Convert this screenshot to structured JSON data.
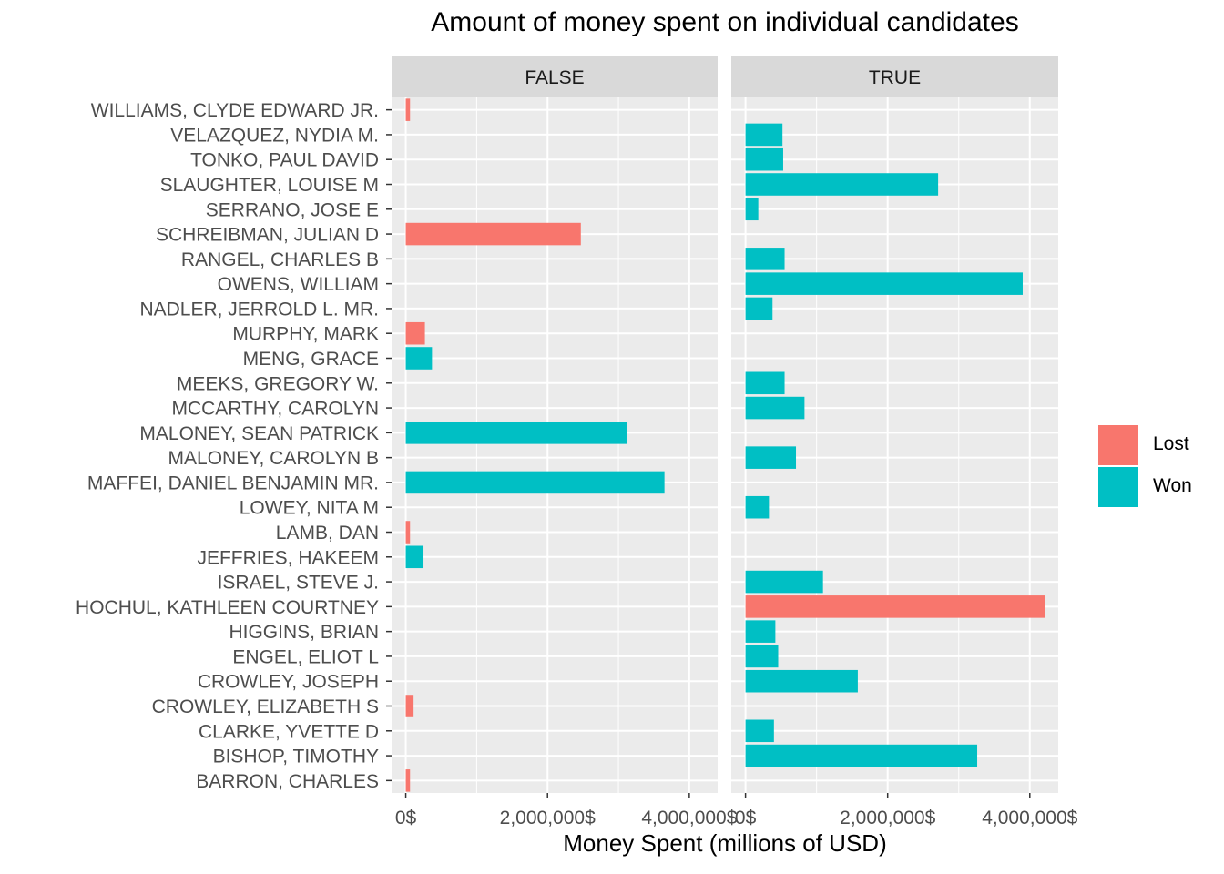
{
  "chart_data": {
    "type": "bar",
    "orientation": "horizontal",
    "title": "Amount of money spent on individual candidates",
    "xlabel": "Money Spent (millions of USD)",
    "ylabel": "",
    "xlim": [
      -200000,
      4400000
    ],
    "x_ticks": [
      0,
      2000000,
      4000000
    ],
    "x_tick_labels": [
      "0$",
      "2,000,000$",
      "4,000,000$"
    ],
    "facets": [
      "FALSE",
      "TRUE"
    ],
    "categories": [
      "WILLIAMS, CLYDE EDWARD JR.",
      "VELAZQUEZ, NYDIA M.",
      "TONKO, PAUL DAVID",
      "SLAUGHTER, LOUISE M",
      "SERRANO, JOSE E",
      "SCHREIBMAN, JULIAN D",
      "RANGEL, CHARLES B",
      "OWENS, WILLIAM",
      "NADLER, JERROLD L. MR.",
      "MURPHY, MARK",
      "MENG, GRACE",
      "MEEKS, GREGORY W.",
      "MCCARTHY, CAROLYN",
      "MALONEY, SEAN PATRICK",
      "MALONEY, CAROLYN B",
      "MAFFEI, DANIEL BENJAMIN MR.",
      "LOWEY, NITA M",
      "LAMB, DAN",
      "JEFFRIES, HAKEEM",
      "ISRAEL, STEVE J.",
      "HOCHUL, KATHLEEN COURTNEY",
      "HIGGINS, BRIAN",
      "ENGEL, ELIOT L",
      "CROWLEY, JOSEPH",
      "CROWLEY, ELIZABETH S",
      "CLARKE, YVETTE D",
      "BISHOP, TIMOTHY",
      "BARRON, CHARLES"
    ],
    "legend": {
      "position": "right",
      "entries": [
        {
          "name": "Lost",
          "color": "#F8766D"
        },
        {
          "name": "Won",
          "color": "#00BFC4"
        }
      ]
    },
    "bars": [
      {
        "panel": "FALSE",
        "candidate": "WILLIAMS, CLYDE EDWARD JR.",
        "value": 60000,
        "result": "Lost"
      },
      {
        "panel": "FALSE",
        "candidate": "SCHREIBMAN, JULIAN D",
        "value": 2470000,
        "result": "Lost"
      },
      {
        "panel": "FALSE",
        "candidate": "MURPHY, MARK",
        "value": 270000,
        "result": "Lost"
      },
      {
        "panel": "FALSE",
        "candidate": "MENG, GRACE",
        "value": 370000,
        "result": "Won"
      },
      {
        "panel": "FALSE",
        "candidate": "MALONEY, SEAN PATRICK",
        "value": 3120000,
        "result": "Won"
      },
      {
        "panel": "FALSE",
        "candidate": "MAFFEI, DANIEL BENJAMIN MR.",
        "value": 3650000,
        "result": "Won"
      },
      {
        "panel": "FALSE",
        "candidate": "LAMB, DAN",
        "value": 60000,
        "result": "Lost"
      },
      {
        "panel": "FALSE",
        "candidate": "JEFFRIES, HAKEEM",
        "value": 250000,
        "result": "Won"
      },
      {
        "panel": "FALSE",
        "candidate": "CROWLEY, ELIZABETH S",
        "value": 110000,
        "result": "Lost"
      },
      {
        "panel": "FALSE",
        "candidate": "BARRON, CHARLES",
        "value": 60000,
        "result": "Lost"
      },
      {
        "panel": "TRUE",
        "candidate": "VELAZQUEZ, NYDIA M.",
        "value": 520000,
        "result": "Won"
      },
      {
        "panel": "TRUE",
        "candidate": "TONKO, PAUL DAVID",
        "value": 530000,
        "result": "Won"
      },
      {
        "panel": "TRUE",
        "candidate": "SLAUGHTER, LOUISE M",
        "value": 2710000,
        "result": "Won"
      },
      {
        "panel": "TRUE",
        "candidate": "SERRANO, JOSE E",
        "value": 180000,
        "result": "Won"
      },
      {
        "panel": "TRUE",
        "candidate": "RANGEL, CHARLES B",
        "value": 550000,
        "result": "Won"
      },
      {
        "panel": "TRUE",
        "candidate": "OWENS, WILLIAM",
        "value": 3900000,
        "result": "Won"
      },
      {
        "panel": "TRUE",
        "candidate": "NADLER, JERROLD L. MR.",
        "value": 380000,
        "result": "Won"
      },
      {
        "panel": "TRUE",
        "candidate": "MEEKS, GREGORY W.",
        "value": 550000,
        "result": "Won"
      },
      {
        "panel": "TRUE",
        "candidate": "MCCARTHY, CAROLYN",
        "value": 830000,
        "result": "Won"
      },
      {
        "panel": "TRUE",
        "candidate": "MALONEY, CAROLYN B",
        "value": 710000,
        "result": "Won"
      },
      {
        "panel": "TRUE",
        "candidate": "LOWEY, NITA M",
        "value": 330000,
        "result": "Won"
      },
      {
        "panel": "TRUE",
        "candidate": "ISRAEL, STEVE J.",
        "value": 1090000,
        "result": "Won"
      },
      {
        "panel": "TRUE",
        "candidate": "HOCHUL, KATHLEEN COURTNEY",
        "value": 4220000,
        "result": "Lost"
      },
      {
        "panel": "TRUE",
        "candidate": "HIGGINS, BRIAN",
        "value": 420000,
        "result": "Won"
      },
      {
        "panel": "TRUE",
        "candidate": "ENGEL, ELIOT L",
        "value": 460000,
        "result": "Won"
      },
      {
        "panel": "TRUE",
        "candidate": "CROWLEY, JOSEPH",
        "value": 1580000,
        "result": "Won"
      },
      {
        "panel": "TRUE",
        "candidate": "CLARKE, YVETTE D",
        "value": 400000,
        "result": "Won"
      },
      {
        "panel": "TRUE",
        "candidate": "BISHOP, TIMOTHY",
        "value": 3260000,
        "result": "Won"
      }
    ],
    "grid": true
  }
}
